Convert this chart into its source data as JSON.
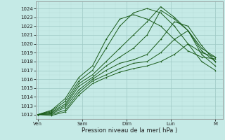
{
  "xlabel": "Pression niveau de la mer( hPa )",
  "bg_color": "#c5eae6",
  "grid_color_major": "#9dc8c4",
  "grid_color_minor": "#b8ddd9",
  "line_color": "#1a5c1a",
  "ylim": [
    1011.5,
    1024.8
  ],
  "yticks": [
    1012,
    1013,
    1014,
    1015,
    1016,
    1017,
    1018,
    1019,
    1020,
    1021,
    1022,
    1023,
    1024
  ],
  "xtick_labels": [
    "Ven",
    "Sam",
    "Dim",
    "Lun",
    "M"
  ],
  "xtick_positions": [
    0,
    24,
    48,
    72,
    96
  ],
  "xlim": [
    -1,
    100
  ],
  "lines": [
    [
      1012.0,
      1012.5,
      1013.8,
      1016.2,
      1017.5,
      1020.5,
      1022.8,
      1023.3,
      1022.8,
      1022.0,
      1020.5,
      1019.2,
      1018.5,
      1018.3
    ],
    [
      1012.0,
      1012.4,
      1013.5,
      1015.8,
      1017.0,
      1019.5,
      1022.0,
      1023.5,
      1024.0,
      1023.5,
      1022.0,
      1020.0,
      1019.0,
      1018.5
    ],
    [
      1012.0,
      1012.3,
      1013.2,
      1015.5,
      1016.5,
      1018.0,
      1019.5,
      1021.0,
      1022.5,
      1024.2,
      1023.0,
      1021.5,
      1019.5,
      1018.5
    ],
    [
      1012.0,
      1012.2,
      1013.0,
      1015.2,
      1016.2,
      1017.5,
      1018.5,
      1019.5,
      1021.0,
      1023.8,
      1022.8,
      1021.5,
      1019.2,
      1018.0
    ],
    [
      1012.0,
      1012.1,
      1012.8,
      1014.8,
      1016.0,
      1017.0,
      1017.8,
      1018.2,
      1018.8,
      1020.5,
      1022.5,
      1022.0,
      1019.8,
      1018.0
    ],
    [
      1012.0,
      1012.0,
      1012.5,
      1014.5,
      1015.8,
      1016.5,
      1017.2,
      1017.8,
      1018.0,
      1019.0,
      1020.5,
      1021.5,
      1018.8,
      1017.5
    ],
    [
      1012.0,
      1011.9,
      1012.3,
      1014.2,
      1015.5,
      1016.2,
      1016.8,
      1017.2,
      1017.5,
      1018.0,
      1018.8,
      1020.0,
      1018.0,
      1017.0
    ]
  ],
  "xlabel_fontsize": 6.0,
  "tick_fontsize": 5.0
}
